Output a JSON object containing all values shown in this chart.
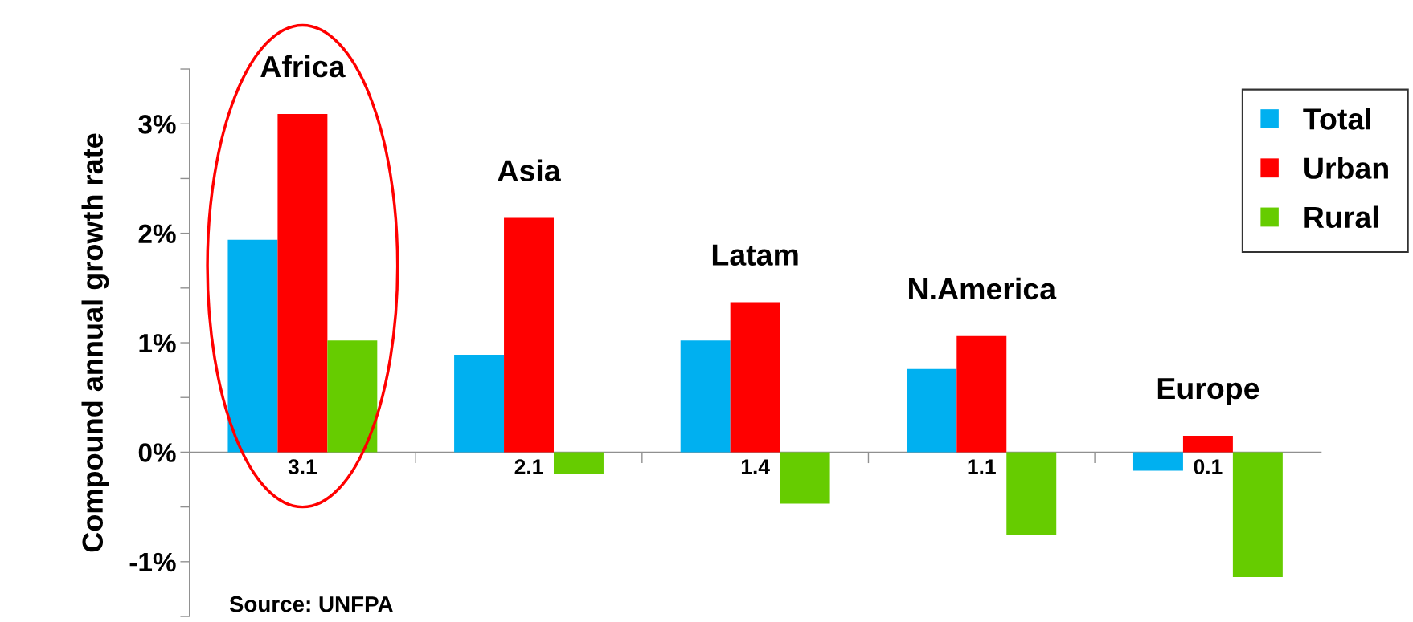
{
  "chart_data": {
    "type": "bar",
    "ylabel": "Compound annual growth rate",
    "categories": [
      "Africa",
      "Asia",
      "Latam",
      "N.America",
      "Europe"
    ],
    "series": [
      {
        "name": "Total",
        "color": "#00b0f0",
        "values": [
          1.94,
          0.89,
          1.02,
          0.76,
          -0.17
        ]
      },
      {
        "name": "Urban",
        "color": "#ff0000",
        "values": [
          3.09,
          2.14,
          1.37,
          1.06,
          0.15
        ],
        "value_labels": [
          "3.1",
          "2.1",
          "1.4",
          "1.1",
          "0.1"
        ]
      },
      {
        "name": "Rural",
        "color": "#66cc00",
        "values": [
          1.02,
          -0.2,
          -0.47,
          -0.76,
          -1.14
        ]
      }
    ],
    "ylim": [
      -1.5,
      3.5
    ],
    "yticks": [
      {
        "value": -1.5,
        "label": null
      },
      {
        "value": -1,
        "label": "-1%"
      },
      {
        "value": -0.5,
        "label": null
      },
      {
        "value": 0,
        "label": "0%"
      },
      {
        "value": 0.5,
        "label": null
      },
      {
        "value": 1,
        "label": "1%"
      },
      {
        "value": 1.5,
        "label": null
      },
      {
        "value": 2,
        "label": "2%"
      },
      {
        "value": 2.5,
        "label": null
      },
      {
        "value": 3,
        "label": "3%"
      },
      {
        "value": 3.5,
        "label": null
      }
    ],
    "legend": "top right",
    "annotations": [
      "Source: UNFPA"
    ]
  }
}
